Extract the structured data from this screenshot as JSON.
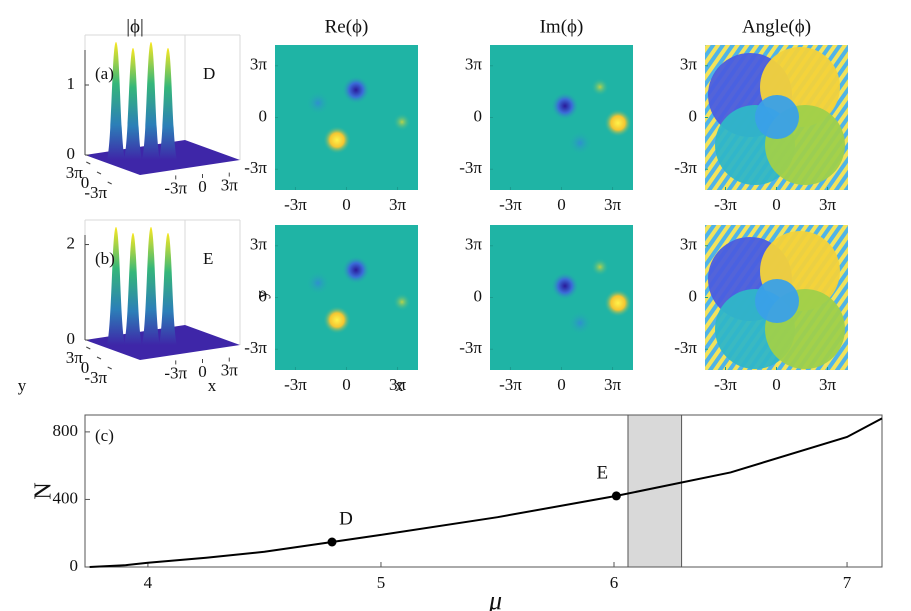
{
  "chart_data": [
    {
      "type": "surface",
      "title": "|ϕ|",
      "label": "(a)",
      "point": "D",
      "zlim": [
        0,
        1.5
      ],
      "zticks": [
        0,
        1
      ],
      "xlim": [
        -13.2,
        13.2
      ],
      "xticks": [
        {
          "value": -9.42,
          "label": "-3π"
        },
        0,
        {
          "value": 9.42,
          "label": "3π"
        }
      ],
      "ylim": [
        -13.2,
        13.2
      ],
      "yticks": [
        {
          "value": 9.42,
          "label": "3π"
        },
        0,
        {
          "value": -9.42,
          "label": "-3π"
        }
      ]
    },
    {
      "type": "heatmap",
      "kind": "re",
      "title": "Re(ϕ)",
      "xlim": [
        -13.2,
        13.2
      ],
      "ylim": [
        -13.2,
        13.2
      ],
      "xticks": [
        {
          "value": -9.42,
          "label": "-3π"
        },
        0,
        {
          "value": 9.42,
          "label": "3π"
        }
      ],
      "yticks": [
        {
          "value": 9.42,
          "label": "3π"
        },
        0,
        {
          "value": -9.42,
          "label": "-3π"
        }
      ]
    },
    {
      "type": "heatmap",
      "kind": "im",
      "title": "Im(ϕ)",
      "xlim": [
        -13.2,
        13.2
      ],
      "ylim": [
        -13.2,
        13.2
      ],
      "xticks": [
        {
          "value": -9.42,
          "label": "-3π"
        },
        0,
        {
          "value": 9.42,
          "label": "3π"
        }
      ],
      "yticks": [
        {
          "value": 9.42,
          "label": "3π"
        },
        0,
        {
          "value": -9.42,
          "label": "-3π"
        }
      ]
    },
    {
      "type": "heatmap",
      "kind": "angle",
      "title": "Angle(ϕ)",
      "xlim": [
        -13.2,
        13.2
      ],
      "ylim": [
        -13.2,
        13.2
      ],
      "xticks": [
        {
          "value": -9.42,
          "label": "-3π"
        },
        0,
        {
          "value": 9.42,
          "label": "3π"
        }
      ],
      "yticks": [
        {
          "value": 9.42,
          "label": "3π"
        },
        0,
        {
          "value": -9.42,
          "label": "-3π"
        }
      ]
    },
    {
      "type": "surface",
      "label": "(b)",
      "point": "E",
      "zlim": [
        0,
        2.2
      ],
      "zticks": [
        0,
        2
      ],
      "xlabel": "x",
      "ylabel": "y",
      "xlim": [
        -13.2,
        13.2
      ],
      "xticks": [
        {
          "value": -9.42,
          "label": "-3π"
        },
        0,
        {
          "value": 9.42,
          "label": "3π"
        }
      ],
      "ylim": [
        -13.2,
        13.2
      ],
      "yticks": [
        {
          "value": 9.42,
          "label": "3π"
        },
        0,
        {
          "value": -9.42,
          "label": "-3π"
        }
      ]
    },
    {
      "type": "heatmap",
      "kind": "re",
      "xlabel": "x",
      "ylabel": "y",
      "xlim": [
        -13.2,
        13.2
      ],
      "ylim": [
        -13.2,
        13.2
      ],
      "xticks": [
        {
          "value": -9.42,
          "label": "-3π"
        },
        0,
        {
          "value": 9.42,
          "label": "3π"
        }
      ],
      "yticks": [
        {
          "value": 9.42,
          "label": "3π"
        },
        0,
        {
          "value": -9.42,
          "label": "-3π"
        }
      ]
    },
    {
      "type": "heatmap",
      "kind": "im",
      "xlim": [
        -13.2,
        13.2
      ],
      "ylim": [
        -13.2,
        13.2
      ],
      "xticks": [
        {
          "value": -9.42,
          "label": "-3π"
        },
        0,
        {
          "value": 9.42,
          "label": "3π"
        }
      ],
      "yticks": [
        {
          "value": 9.42,
          "label": "3π"
        },
        0,
        {
          "value": -9.42,
          "label": "-3π"
        }
      ]
    },
    {
      "type": "heatmap",
      "kind": "angle2",
      "xlim": [
        -13.2,
        13.2
      ],
      "ylim": [
        -13.2,
        13.2
      ],
      "xticks": [
        {
          "value": -9.42,
          "label": "-3π"
        },
        0,
        {
          "value": 9.42,
          "label": "3π"
        }
      ],
      "yticks": [
        {
          "value": 9.42,
          "label": "3π"
        },
        0,
        {
          "value": -9.42,
          "label": "-3π"
        }
      ]
    },
    {
      "type": "line",
      "label": "(c)",
      "xlabel": "μ",
      "ylabel": "N",
      "color": "#000000",
      "x": [
        3.75,
        3.9,
        4,
        4.25,
        4.5,
        4.79,
        5,
        5.5,
        6.01,
        6.5,
        7,
        7.15
      ],
      "values": [
        0,
        10,
        25,
        55,
        90,
        148,
        190,
        295,
        421,
        560,
        770,
        880
      ],
      "points": [
        {
          "label": "D",
          "x": 4.79,
          "y": 148
        },
        {
          "label": "E",
          "x": 6.01,
          "y": 421
        }
      ],
      "shade": [
        6.06,
        6.29
      ],
      "shade_color": "#d9d9d9",
      "xlim": [
        3.73,
        7.15
      ],
      "ylim": [
        0,
        900
      ],
      "xticks": [
        4,
        5,
        6,
        7
      ],
      "yticks": [
        0,
        400,
        800
      ]
    }
  ]
}
